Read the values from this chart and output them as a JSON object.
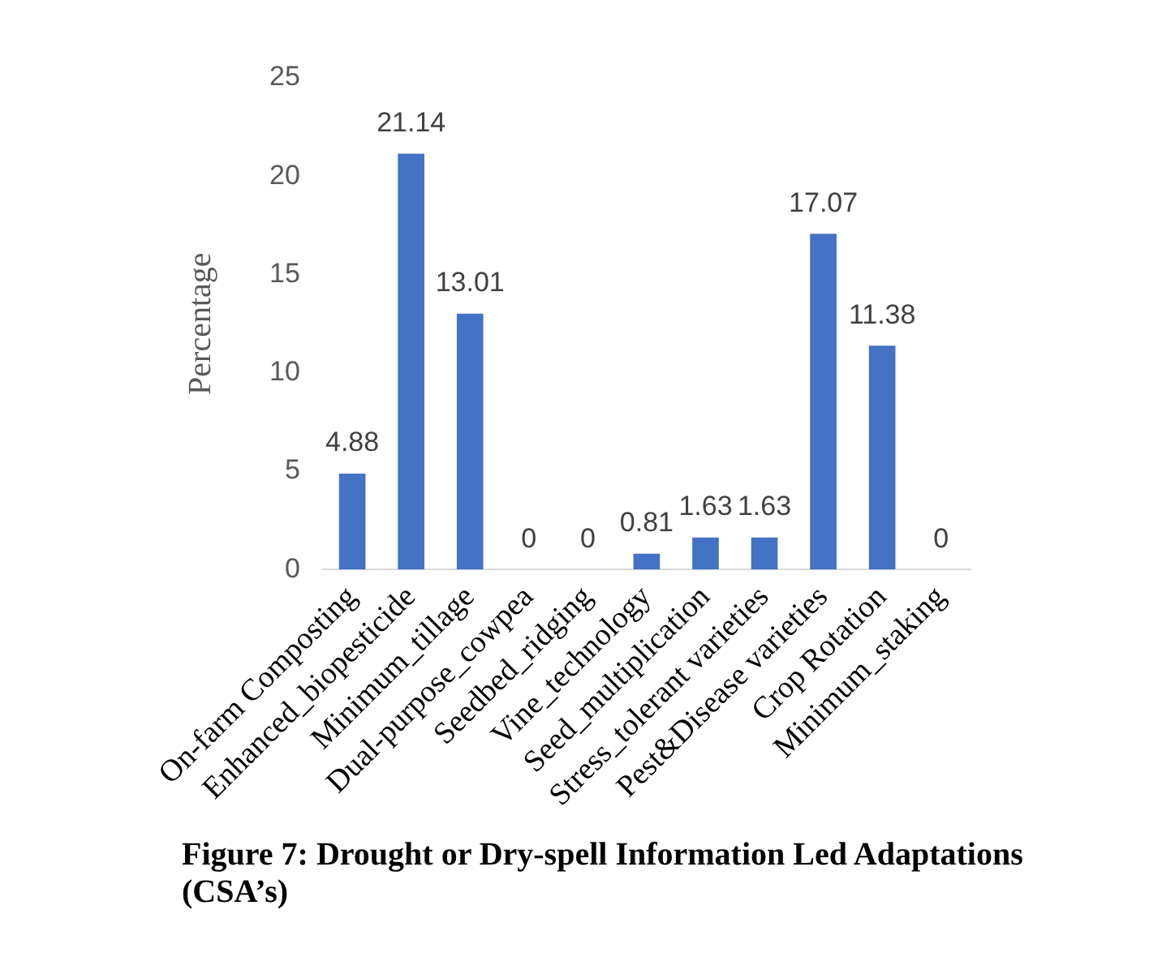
{
  "chart_data": {
    "type": "bar",
    "title": "Figure 7: Drought or Dry-spell Information Led Adaptations (CSA’s)",
    "ylabel": "Percentage",
    "categories": [
      "On-farm Composting",
      "Enhanced_biopesticide",
      "Minimum_tillage",
      "Dual-purpose_cowpea",
      "Seedbed_ridging",
      "Vine_technology",
      "Seed_multiplication",
      "Stress_tolerant varieties",
      "Pest&Disease varieties",
      "Crop Rotation",
      "Minimum_staking"
    ],
    "values": [
      4.88,
      21.14,
      13.01,
      0,
      0,
      0.81,
      1.63,
      1.63,
      17.07,
      11.38,
      0
    ],
    "color": "#4472c4",
    "ylim": [
      0,
      25
    ],
    "yticks": [
      0,
      5,
      10,
      15,
      20,
      25
    ],
    "grid": false,
    "legend": false,
    "data_labels": true
  }
}
